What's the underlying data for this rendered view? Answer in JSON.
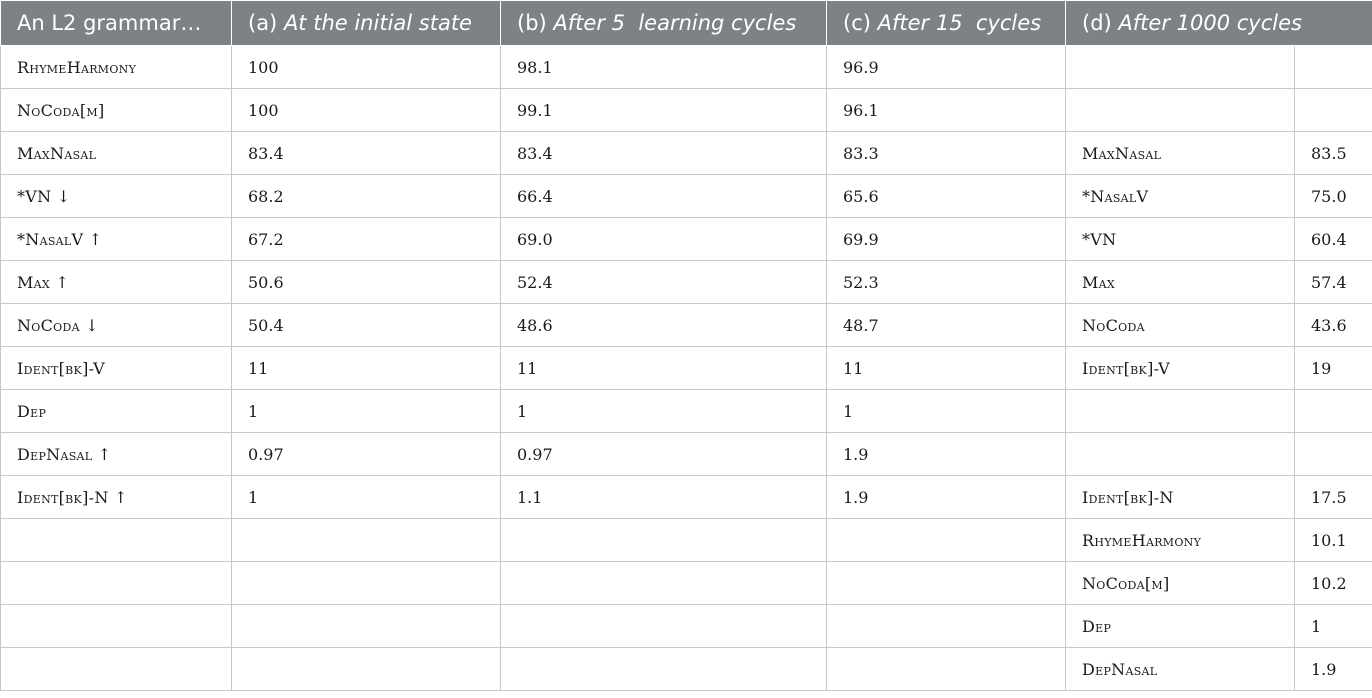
{
  "headers": [
    {
      "plain": "An L2 grammar…",
      "italic": ""
    },
    {
      "plain": "(a) ",
      "italic": "At the initial state"
    },
    {
      "plain": "(b) ",
      "italic": "After 5  learning cycles"
    },
    {
      "plain": "(c) ",
      "italic": "After 15  cycles"
    },
    {
      "plain": "(d) ",
      "italic": "After 1000 cycles"
    }
  ],
  "rows": [
    [
      "RhymeHarmony",
      "100",
      "98.1",
      "96.9",
      "",
      ""
    ],
    [
      "NoCoda[m]",
      "100",
      "99.1",
      "96.1",
      "",
      ""
    ],
    [
      "MaxNasal",
      "83.4",
      "83.4",
      "83.3",
      "MaxNasal",
      "83.5"
    ],
    [
      "*VN ↓",
      "68.2",
      "66.4",
      "65.6",
      "*NasalV",
      "75.0"
    ],
    [
      "*NasalV ↑",
      "67.2",
      "69.0",
      "69.9",
      "*VN",
      "60.4"
    ],
    [
      "Max ↑",
      "50.6",
      "52.4",
      "52.3",
      "Max",
      "57.4"
    ],
    [
      "NoCoda ↓",
      "50.4",
      "48.6",
      "48.7",
      "NoCoda",
      "43.6"
    ],
    [
      "Ident[bk]-V",
      "11",
      "11",
      "11",
      "Ident[bk]-V",
      "19"
    ],
    [
      "Dep",
      "1",
      "1",
      "1",
      "",
      ""
    ],
    [
      "DepNasal ↑",
      "0.97",
      "0.97",
      "1.9",
      "",
      ""
    ],
    [
      "Ident[bk]-N ↑",
      "1",
      "1.1",
      "1.9",
      "Ident[bk]-N",
      "17.5"
    ],
    [
      "",
      "",
      "",
      "",
      "RhymeHarmony",
      "10.1"
    ],
    [
      "",
      "",
      "",
      "",
      "NoCoda[m]",
      "10.2"
    ],
    [
      "",
      "",
      "",
      "",
      "Dep",
      "1"
    ],
    [
      "",
      "",
      "",
      "",
      "DepNasal",
      "1.9"
    ]
  ]
}
